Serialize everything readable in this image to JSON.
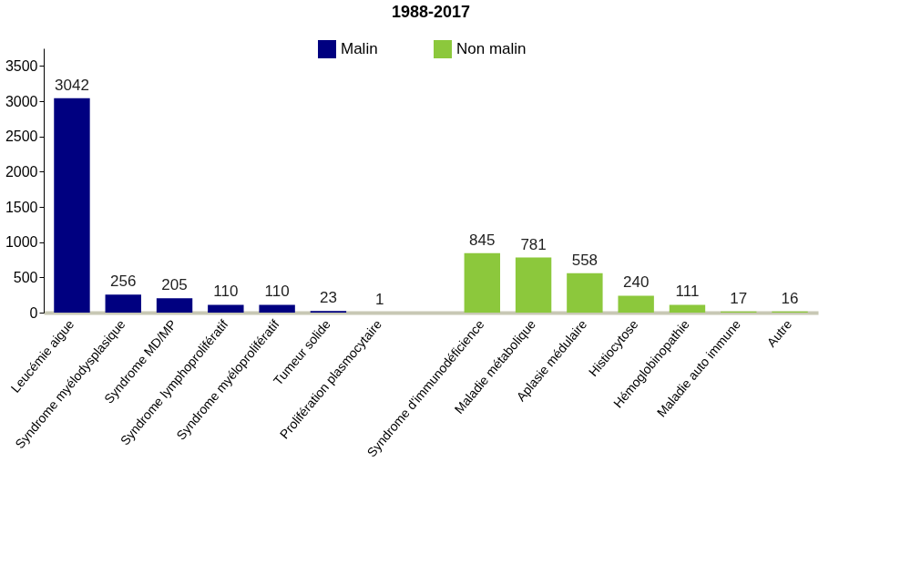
{
  "chart_data": {
    "type": "bar",
    "title": "1988-2017",
    "categories": [
      "Leucémie aigue",
      "Syndrome myélodysplasique",
      "Syndrome MD/MP",
      "Syndrome lymphoprolifératif",
      "Syndrome myéloprolifératif",
      "Tumeur solide",
      "Prolifération plasmocytaire",
      null,
      "Syndrome d'immunodéficience",
      "Maladie métabolique",
      "Aplasie médulaire",
      "Histiocytose",
      "Hémoglobinopathie",
      "Maladie auto immune",
      "Autre"
    ],
    "series": [
      {
        "name": "Malin",
        "color": "#000080",
        "values": [
          3042,
          256,
          205,
          110,
          110,
          23,
          1,
          null,
          null,
          null,
          null,
          null,
          null,
          null,
          null
        ]
      },
      {
        "name": "Non malin",
        "color": "#8cc83c",
        "values": [
          null,
          null,
          null,
          null,
          null,
          null,
          null,
          null,
          845,
          781,
          558,
          240,
          111,
          17,
          16
        ]
      }
    ],
    "ylim": [
      0,
      3750
    ],
    "yticks": [
      0,
      500,
      1000,
      1500,
      2000,
      2500,
      3000,
      3500
    ],
    "grid": false,
    "legend": "top",
    "data_labels": true
  }
}
